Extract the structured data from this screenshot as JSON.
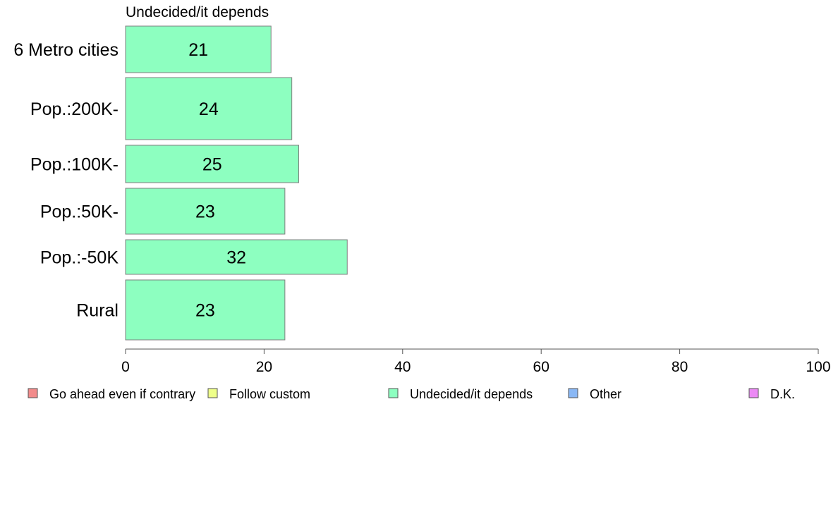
{
  "chart_data": {
    "type": "bar",
    "orientation": "horizontal",
    "title": "Undecided/it depends",
    "categories": [
      "6 Metro cities",
      "Pop.:200K-",
      "Pop.:100K-",
      "Pop.:50K-",
      "Pop.:-50K",
      "Rural"
    ],
    "series": [
      {
        "name": "Undecided/it depends",
        "color": "#8dffc0",
        "values": [
          21,
          24,
          25,
          23,
          32,
          23
        ]
      }
    ],
    "xlim": [
      0,
      100
    ],
    "xticks": [
      "0",
      "20",
      "40",
      "60",
      "80",
      "100"
    ],
    "grid": false,
    "legend_position": "bottom",
    "legend": [
      {
        "label": "Go ahead even if contrary",
        "color": "#f28b8b"
      },
      {
        "label": "Follow custom",
        "color": "#eeff8a"
      },
      {
        "label": "Undecided/it depends",
        "color": "#8dffc0"
      },
      {
        "label": "Other",
        "color": "#8ab8f5"
      },
      {
        "label": "D.K.",
        "color": "#ec8af5"
      }
    ]
  }
}
